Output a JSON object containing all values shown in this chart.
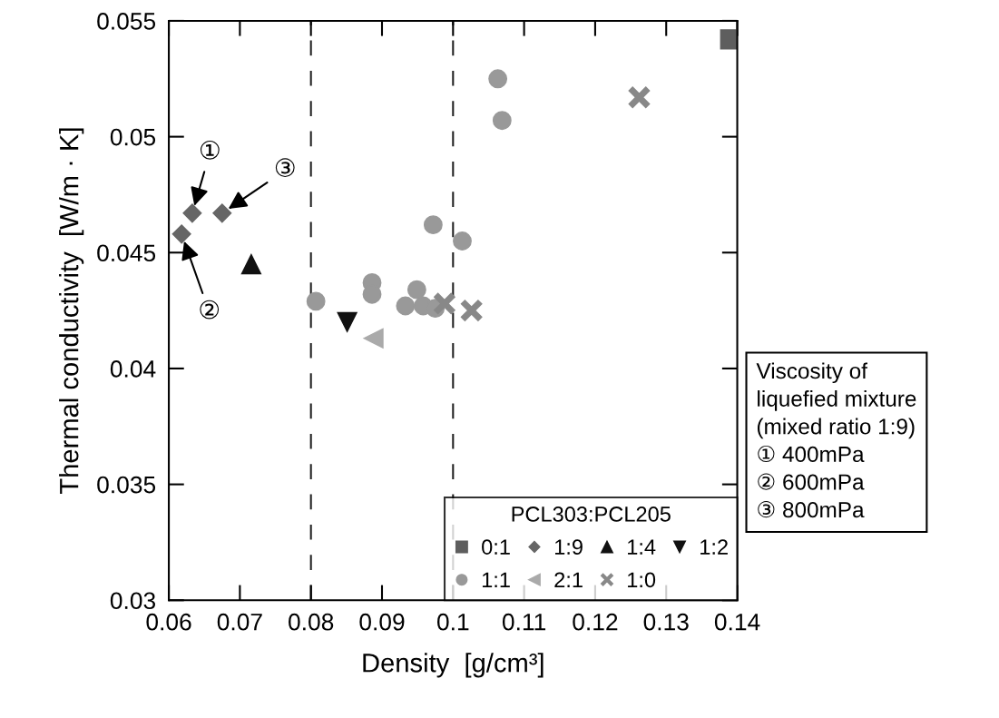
{
  "chart_data": {
    "type": "scatter",
    "xlabel": "Density  [g/cm³]",
    "ylabel": "Thermal conductivity  [W/m · K]",
    "legend_title": "PCL303:PCL205",
    "legend": "bottom right",
    "grid": false,
    "xlim": [
      0.06,
      0.14
    ],
    "xticks": [
      0.06,
      0.07,
      0.08,
      0.09,
      0.1,
      0.11,
      0.12,
      0.13,
      0.14
    ],
    "ylim": [
      0.03,
      0.055
    ],
    "yticks": [
      0.03,
      0.035,
      0.04,
      0.045,
      0.05,
      0.055
    ],
    "series": [
      {
        "name": "0:1",
        "color": "#5e5e5e",
        "marker": "square",
        "x": [
          0.139
        ],
        "values": [
          0.0542
        ]
      },
      {
        "name": "1:9",
        "color": "#666666",
        "marker": "diamond",
        "x": [
          0.0633,
          0.0618,
          0.0675
        ],
        "values": [
          0.0467,
          0.0458,
          0.0467
        ]
      },
      {
        "name": "1:4",
        "color": "#111111",
        "marker": "triangle",
        "x": [
          0.0716
        ],
        "values": [
          0.0445
        ]
      },
      {
        "name": "1:2",
        "color": "#111111",
        "marker": "triangle_down",
        "x": [
          0.0851
        ],
        "values": [
          0.042
        ]
      },
      {
        "name": "1:1",
        "color": "#999999",
        "marker": "circle",
        "x": [
          0.0807,
          0.0886,
          0.0886,
          0.0933,
          0.0949,
          0.0958,
          0.0975,
          0.0972,
          0.1013,
          0.1063,
          0.1069
        ],
        "values": [
          0.0429,
          0.0437,
          0.0432,
          0.0427,
          0.0434,
          0.0427,
          0.0426,
          0.0462,
          0.0455,
          0.0525,
          0.0507
        ]
      },
      {
        "name": "2:1",
        "color": "#aaaaaa",
        "marker": "triangle_left",
        "x": [
          0.0888
        ],
        "values": [
          0.0413
        ]
      },
      {
        "name": "1:0",
        "color": "#888888",
        "marker": "cross",
        "x": [
          0.0988,
          0.1026,
          0.1262
        ],
        "values": [
          0.0428,
          0.0425,
          0.0517
        ]
      }
    ],
    "ref_lines": [
      {
        "axis": "x",
        "value": 0.08,
        "line_style": "dashed",
        "color": "#222222"
      },
      {
        "axis": "x",
        "value": 0.1,
        "line_style": "dashed",
        "color": "#222222"
      }
    ],
    "annotations": [
      {
        "text": "①",
        "x": 0.0633,
        "y": 0.0467
      },
      {
        "text": "②",
        "x": 0.0618,
        "y": 0.0458
      },
      {
        "text": "③",
        "x": 0.0675,
        "y": 0.0467
      },
      "Viscosity of\nliquefied mixture\n(mixed ratio 1:9)\n① 400mPa\n② 600mPa\n③ 800mPa"
    ]
  }
}
